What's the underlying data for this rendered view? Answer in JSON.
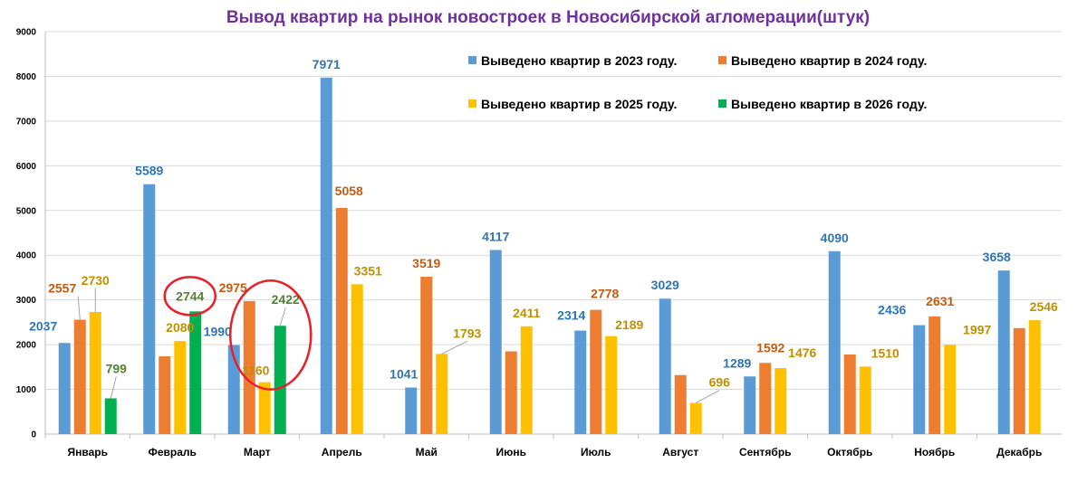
{
  "chart_data": {
    "type": "bar",
    "title": "Вывод квартир на рынок новостроек в Новосибирской агломерации(штук)",
    "xlabel": "",
    "ylabel": "",
    "ylim": [
      0,
      9000
    ],
    "ytick_step": 1000,
    "grid": true,
    "legend_position": "top-right",
    "categories": [
      "Январь",
      "Февраль",
      "Март",
      "Апрель",
      "Май",
      "Июнь",
      "Июль",
      "Август",
      "Сентябрь",
      "Октябрь",
      "Ноябрь",
      "Декабрь"
    ],
    "series": [
      {
        "name": "Выведено квартир в  2023 году.",
        "color": "#5b9bd5",
        "label_color": "#2e75b6",
        "values": [
          2037,
          5589,
          1990,
          7971,
          1041,
          4117,
          2314,
          3029,
          1289,
          4090,
          2436,
          3658
        ]
      },
      {
        "name": "Выведено квартир  в 2024 году.",
        "color": "#ed7d31",
        "label_color": "#c55a11",
        "values": [
          2557,
          1740,
          2975,
          5058,
          3519,
          1850,
          2778,
          1320,
          1592,
          1780,
          2631,
          2370
        ]
      },
      {
        "name": "Выведено квартир  в 2025 году.",
        "color": "#ffc000",
        "label_color": "#bf9000",
        "values": [
          2730,
          2080,
          1160,
          3351,
          1793,
          2411,
          2189,
          696,
          1476,
          1510,
          1997,
          2546
        ]
      },
      {
        "name": "Выведено квартир  в 2026 году.",
        "color": "#00b050",
        "label_color": "#548235",
        "values": [
          799,
          2744,
          2422,
          null,
          null,
          null,
          null,
          null,
          null,
          null,
          null,
          null
        ]
      }
    ],
    "data_labels": [
      [
        "2037",
        "2557",
        "2730",
        "799"
      ],
      [
        "5589",
        "",
        "2080",
        "2744"
      ],
      [
        "1990",
        "2975",
        "1160",
        "2422"
      ],
      [
        "7971",
        "5058",
        "3351",
        ""
      ],
      [
        "1041",
        "3519",
        "1793",
        ""
      ],
      [
        "4117",
        "",
        "2411",
        ""
      ],
      [
        "2314",
        "2778",
        "2189",
        ""
      ],
      [
        "3029",
        "",
        "696",
        ""
      ],
      [
        "1289",
        "1592",
        "1476",
        ""
      ],
      [
        "4090",
        "",
        "1510",
        ""
      ],
      [
        "2436",
        "2631",
        "1997",
        ""
      ],
      [
        "3658",
        "",
        "2546",
        ""
      ]
    ],
    "highlight_color": "#e8202a",
    "highlighted_labels": [
      {
        "category": "Февраль",
        "labels": [
          "2744"
        ]
      },
      {
        "category": "Март",
        "labels": [
          "1160",
          "2422"
        ]
      }
    ],
    "title_color": "#7030a0"
  }
}
